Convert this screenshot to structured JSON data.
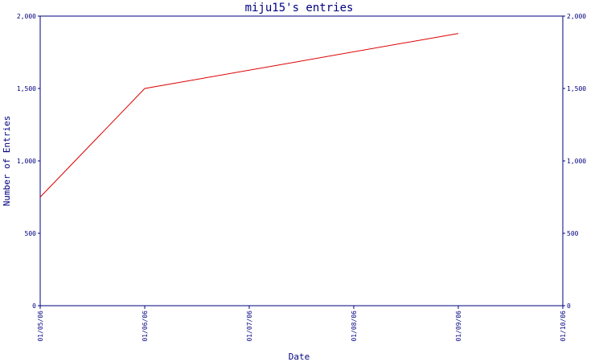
{
  "chart_data": {
    "type": "line",
    "title": "miju15's entries",
    "xlabel": "Date",
    "ylabel": "Number of Entries",
    "x_ticks": [
      "01/05/06",
      "01/06/06",
      "01/07/06",
      "01/08/06",
      "01/09/06",
      "01/10/06"
    ],
    "y_ticks": [
      "0",
      "500",
      "1,000",
      "1,500",
      "2,000"
    ],
    "ylim": [
      0,
      2000
    ],
    "xlim": [
      "2006-01-05",
      "2006-01-10"
    ],
    "grid": false,
    "series": [
      {
        "color": "#dd0000",
        "points": [
          {
            "x": "2006-01-05",
            "y": 750
          },
          {
            "x": "2006-01-06",
            "y": 1500
          },
          {
            "x": "2006-01-09",
            "y": 1880
          }
        ]
      }
    ]
  },
  "colors": {
    "axis": "#000080",
    "background": "#ffffff"
  }
}
